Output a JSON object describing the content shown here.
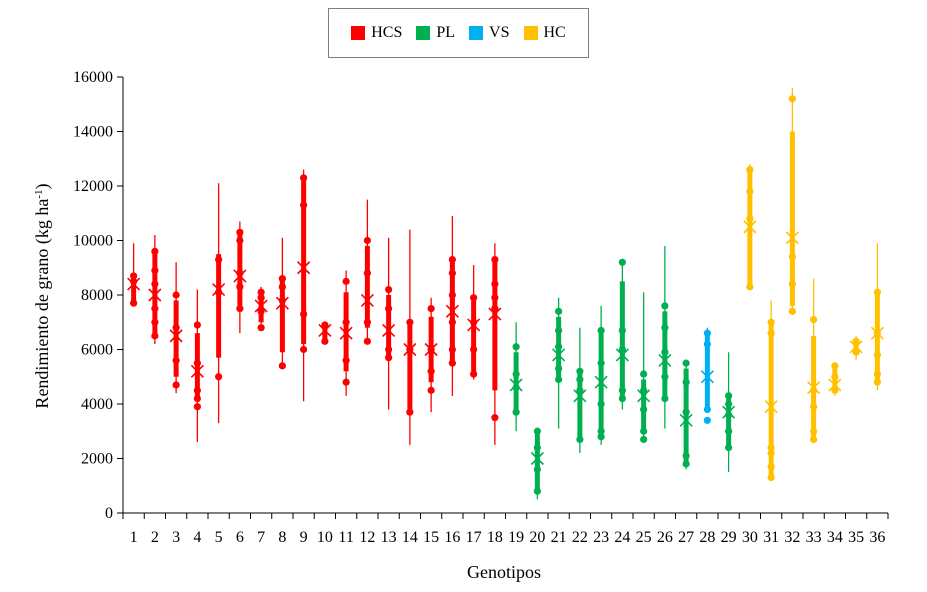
{
  "chart_data": {
    "type": "box-range",
    "xlabel": "Genotipos",
    "ylabel_main": "Rendimiento de grano (kg ha",
    "ylabel_sup": "-1",
    "ylabel_end": ")",
    "ylim": [
      0,
      16000
    ],
    "yticks": [
      0,
      2000,
      4000,
      6000,
      8000,
      10000,
      12000,
      14000,
      16000
    ],
    "ytick_labels": [
      "0",
      "2000",
      "4000",
      "6000",
      "8000",
      "10000",
      "12000",
      "14000",
      "16000"
    ],
    "grid": false,
    "legend_position": "top-center",
    "groups": [
      {
        "name": "HCS",
        "color": "#ff0000"
      },
      {
        "name": "PL",
        "color": "#00b050"
      },
      {
        "name": "VS",
        "color": "#00b0f0"
      },
      {
        "name": "HC",
        "color": "#ffc000"
      }
    ],
    "genotypes": [
      {
        "label": "1",
        "group": "HCS",
        "min": 7600,
        "q1": 7700,
        "q3": 8700,
        "max": 9900,
        "mean": 8400,
        "points": [
          7700,
          8500,
          8700
        ]
      },
      {
        "label": "2",
        "group": "HCS",
        "min": 6200,
        "q1": 6500,
        "q3": 9500,
        "max": 10200,
        "mean": 8000,
        "points": [
          6500,
          7000,
          7500,
          8400,
          8900,
          9600
        ]
      },
      {
        "label": "3",
        "group": "HCS",
        "min": 4400,
        "q1": 5000,
        "q3": 7800,
        "max": 9200,
        "mean": 6500,
        "points": [
          4700,
          5600,
          6800,
          8000
        ]
      },
      {
        "label": "4",
        "group": "HCS",
        "min": 2600,
        "q1": 4100,
        "q3": 6600,
        "max": 8200,
        "mean": 5200,
        "points": [
          3900,
          4200,
          4500,
          5500,
          6900
        ]
      },
      {
        "label": "5",
        "group": "HCS",
        "min": 3300,
        "q1": 5700,
        "q3": 9500,
        "max": 12100,
        "mean": 8200,
        "points": [
          5000,
          8100,
          9300
        ]
      },
      {
        "label": "6",
        "group": "HCS",
        "min": 6600,
        "q1": 7600,
        "q3": 10300,
        "max": 10700,
        "mean": 8700,
        "points": [
          7500,
          8300,
          8800,
          10000,
          10300
        ]
      },
      {
        "label": "7",
        "group": "HCS",
        "min": 6800,
        "q1": 7000,
        "q3": 8000,
        "max": 8300,
        "mean": 7600,
        "points": [
          6800,
          7400,
          7900,
          8100
        ]
      },
      {
        "label": "8",
        "group": "HCS",
        "min": 5300,
        "q1": 5900,
        "q3": 8600,
        "max": 10100,
        "mean": 7700,
        "points": [
          5400,
          7800,
          8300,
          8600
        ]
      },
      {
        "label": "9",
        "group": "HCS",
        "min": 4100,
        "q1": 6200,
        "q3": 12300,
        "max": 12600,
        "mean": 9000,
        "points": [
          6000,
          7300,
          11300,
          12300
        ]
      },
      {
        "label": "10",
        "group": "HCS",
        "min": 6200,
        "q1": 6400,
        "q3": 6900,
        "max": 7000,
        "mean": 6700,
        "points": [
          6300,
          6900
        ]
      },
      {
        "label": "11",
        "group": "HCS",
        "min": 4300,
        "q1": 5200,
        "q3": 8100,
        "max": 8900,
        "mean": 6600,
        "points": [
          4800,
          5600,
          7000,
          8500
        ]
      },
      {
        "label": "12",
        "group": "HCS",
        "min": 6300,
        "q1": 6800,
        "q3": 9800,
        "max": 11500,
        "mean": 7800,
        "points": [
          6300,
          7000,
          8800,
          10000
        ]
      },
      {
        "label": "13",
        "group": "HCS",
        "min": 3800,
        "q1": 5700,
        "q3": 8000,
        "max": 10100,
        "mean": 6700,
        "points": [
          5700,
          6000,
          7500,
          8200
        ]
      },
      {
        "label": "14",
        "group": "HCS",
        "min": 2500,
        "q1": 3800,
        "q3": 7000,
        "max": 10400,
        "mean": 6000,
        "points": [
          3700,
          6000,
          7000
        ]
      },
      {
        "label": "15",
        "group": "HCS",
        "min": 3700,
        "q1": 4800,
        "q3": 7200,
        "max": 7900,
        "mean": 6000,
        "points": [
          4500,
          5200,
          6000,
          7500
        ]
      },
      {
        "label": "16",
        "group": "HCS",
        "min": 4300,
        "q1": 5400,
        "q3": 9200,
        "max": 10900,
        "mean": 7400,
        "points": [
          5500,
          6000,
          7000,
          8000,
          8800,
          9300
        ]
      },
      {
        "label": "17",
        "group": "HCS",
        "min": 4900,
        "q1": 5200,
        "q3": 7900,
        "max": 9100,
        "mean": 6900,
        "points": [
          5100,
          6000,
          7000,
          7900
        ]
      },
      {
        "label": "18",
        "group": "HCS",
        "min": 2500,
        "q1": 4500,
        "q3": 9300,
        "max": 9900,
        "mean": 7300,
        "points": [
          3500,
          7500,
          7900,
          8400,
          9300
        ]
      },
      {
        "label": "19",
        "group": "PL",
        "min": 3000,
        "q1": 3800,
        "q3": 5900,
        "max": 7000,
        "mean": 4700,
        "points": [
          3700,
          4600,
          5100,
          6100
        ]
      },
      {
        "label": "20",
        "group": "PL",
        "min": 500,
        "q1": 800,
        "q3": 2900,
        "max": 3100,
        "mean": 2000,
        "points": [
          800,
          1600,
          2400,
          3000
        ]
      },
      {
        "label": "21",
        "group": "PL",
        "min": 3100,
        "q1": 5000,
        "q3": 7200,
        "max": 7900,
        "mean": 5800,
        "points": [
          4900,
          5300,
          6100,
          6700,
          7400
        ]
      },
      {
        "label": "22",
        "group": "PL",
        "min": 2200,
        "q1": 2700,
        "q3": 5100,
        "max": 6800,
        "mean": 4300,
        "points": [
          2700,
          4500,
          4900,
          5200
        ]
      },
      {
        "label": "23",
        "group": "PL",
        "min": 2500,
        "q1": 2900,
        "q3": 6600,
        "max": 7600,
        "mean": 4800,
        "points": [
          2800,
          3000,
          4000,
          5500,
          6700
        ]
      },
      {
        "label": "24",
        "group": "PL",
        "min": 3800,
        "q1": 4200,
        "q3": 8500,
        "max": 9200,
        "mean": 5800,
        "points": [
          4200,
          4500,
          6000,
          6700,
          9200
        ]
      },
      {
        "label": "25",
        "group": "PL",
        "min": 2700,
        "q1": 2900,
        "q3": 4900,
        "max": 8100,
        "mean": 4300,
        "points": [
          2700,
          3000,
          3800,
          4500,
          5100
        ]
      },
      {
        "label": "26",
        "group": "PL",
        "min": 3100,
        "q1": 4200,
        "q3": 7400,
        "max": 9800,
        "mean": 5600,
        "points": [
          4200,
          5000,
          5900,
          6800,
          7600
        ]
      },
      {
        "label": "27",
        "group": "PL",
        "min": 1600,
        "q1": 1800,
        "q3": 5300,
        "max": 5600,
        "mean": 3400,
        "points": [
          1800,
          2100,
          3700,
          4800,
          5500
        ]
      },
      {
        "label": "28",
        "group": "VS",
        "min": 3700,
        "q1": 3900,
        "q3": 6600,
        "max": 6800,
        "mean": 5000,
        "points": [
          3400,
          3800,
          6200,
          6600
        ]
      },
      {
        "label": "29",
        "group": "PL",
        "min": 1500,
        "q1": 2400,
        "q3": 4200,
        "max": 5900,
        "mean": 3700,
        "points": [
          2400,
          3000,
          3600,
          4000,
          4300
        ]
      },
      {
        "label": "30",
        "group": "HC",
        "min": 8200,
        "q1": 8300,
        "q3": 12600,
        "max": 12800,
        "mean": 10500,
        "points": [
          8300,
          10800,
          11800,
          12600
        ]
      },
      {
        "label": "31",
        "group": "HC",
        "min": 1200,
        "q1": 1300,
        "q3": 7000,
        "max": 7800,
        "mean": 3900,
        "points": [
          1300,
          1700,
          2200,
          2400,
          6600,
          7000
        ]
      },
      {
        "label": "32",
        "group": "HC",
        "min": 7300,
        "q1": 7600,
        "q3": 14000,
        "max": 15600,
        "mean": 10100,
        "points": [
          7400,
          8400,
          9400,
          15200
        ]
      },
      {
        "label": "33",
        "group": "HC",
        "min": 2600,
        "q1": 2800,
        "q3": 6500,
        "max": 8600,
        "mean": 4600,
        "points": [
          2700,
          3000,
          3900,
          4500,
          7100
        ]
      },
      {
        "label": "34",
        "group": "HC",
        "min": 4300,
        "q1": 4500,
        "q3": 5300,
        "max": 5500,
        "mean": 4700,
        "points": [
          4500,
          5000,
          5400
        ]
      },
      {
        "label": "35",
        "group": "HC",
        "min": 5600,
        "q1": 5900,
        "q3": 6400,
        "max": 6500,
        "mean": 6100,
        "points": [
          5900,
          6300
        ]
      },
      {
        "label": "36",
        "group": "HC",
        "min": 4500,
        "q1": 4900,
        "q3": 8000,
        "max": 9900,
        "mean": 6600,
        "points": [
          4800,
          5100,
          5800,
          6600,
          8100
        ]
      }
    ]
  },
  "legend": {
    "items": [
      {
        "label": "HCS",
        "color": "#ff0000"
      },
      {
        "label": "PL",
        "color": "#00b050"
      },
      {
        "label": "VS",
        "color": "#00b0f0"
      },
      {
        "label": "HC",
        "color": "#ffc000"
      }
    ]
  }
}
